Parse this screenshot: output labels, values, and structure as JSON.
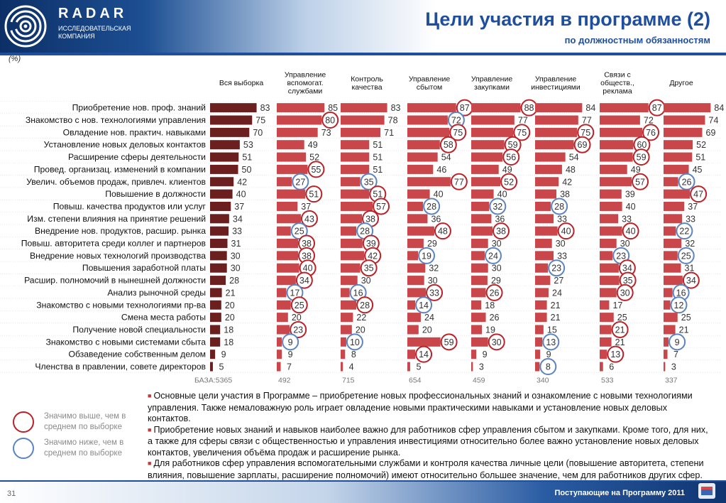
{
  "header": {
    "logo_name": "RADAR",
    "logo_subtitle": "ИССЛЕДОВАТЕЛЬСКАЯ КОМПАНИЯ",
    "title": "Цели участия в программе (2)",
    "subtitle": "по должностным обязанностям"
  },
  "unit_label": "(%)",
  "colors": {
    "bar_total": "#6b1f1f",
    "bar_segment": "#c9474a",
    "above_avg_circle": "#b82228",
    "below_avg_circle": "#5c84c0",
    "title": "#1f4e9c"
  },
  "chart_data": {
    "type": "bar",
    "orientation": "horizontal",
    "categories": [
      "Приобретение нов. проф. знаний",
      "Знакомство с нов. технологиями управления",
      "Овладение нов. практич. навыками",
      "Установление новых деловых контактов",
      "Расширение сферы деятельности",
      "Провед. организац. изменений в компании",
      "Увелич. объемов продаж, привлеч. клиентов",
      "Повышение в должности",
      "Повыш. качества продуктов или услуг",
      "Изм. степени влияния на принятие решений",
      "Внедрение нов. продуктов, расшир. рынка",
      "Повыш. авторитета среди коллег и партнеров",
      "Внедрение новых технологий производства",
      "Повышения заработной платы",
      "Расшир. полномочий в нынешней должности",
      "Анализ рыночной среды",
      "Знакомство с новыми технологиями пр-ва",
      "Смена места работы",
      "Получение новой специальности",
      "Знакомство с новыми системами сбыта",
      "Обзаведение собственным делом",
      "Членства в правлении, совете директоров"
    ],
    "series": [
      {
        "name": "Вся выборка",
        "base": "5365",
        "values": [
          83,
          75,
          70,
          53,
          51,
          50,
          42,
          40,
          37,
          34,
          33,
          31,
          30,
          30,
          28,
          21,
          20,
          20,
          18,
          18,
          9,
          5
        ],
        "marks": [
          "",
          "",
          "",
          "",
          "",
          "",
          "",
          "",
          "",
          "",
          "",
          "",
          "",
          "",
          "",
          "",
          "",
          "",
          "",
          "",
          "",
          ""
        ]
      },
      {
        "name": "Управление вспомогат. службами",
        "base": "492",
        "values": [
          85,
          80,
          73,
          49,
          52,
          55,
          27,
          51,
          37,
          43,
          25,
          38,
          38,
          40,
          34,
          17,
          25,
          20,
          23,
          9,
          9,
          7
        ],
        "marks": [
          "",
          "above",
          "",
          "",
          "",
          "above",
          "below",
          "above",
          "",
          "above",
          "below",
          "above",
          "above",
          "above",
          "above",
          "below",
          "above",
          "",
          "above",
          "below",
          "",
          ""
        ]
      },
      {
        "name": "Контроль качества",
        "base": "715",
        "values": [
          83,
          78,
          71,
          51,
          51,
          51,
          35,
          51,
          57,
          38,
          28,
          39,
          42,
          35,
          30,
          16,
          28,
          22,
          20,
          10,
          8,
          4
        ],
        "marks": [
          "",
          "",
          "",
          "",
          "",
          "",
          "below",
          "above",
          "above",
          "above",
          "below",
          "above",
          "above",
          "above",
          "",
          "below",
          "above",
          "",
          "",
          "below",
          "",
          ""
        ]
      },
      {
        "name": "Управление сбытом",
        "base": "654",
        "values": [
          87,
          72,
          75,
          58,
          54,
          46,
          77,
          40,
          28,
          36,
          48,
          29,
          19,
          32,
          30,
          33,
          14,
          24,
          20,
          59,
          14,
          5
        ],
        "marks": [
          "above",
          "below",
          "above",
          "above",
          "",
          "",
          "above",
          "",
          "below",
          "",
          "above",
          "",
          "below",
          "",
          "",
          "above",
          "below",
          "",
          "",
          "above",
          "above",
          ""
        ]
      },
      {
        "name": "Управление закупками",
        "base": "459",
        "values": [
          88,
          77,
          75,
          59,
          56,
          49,
          52,
          40,
          32,
          36,
          38,
          30,
          24,
          30,
          29,
          26,
          18,
          26,
          19,
          30,
          9,
          3
        ],
        "marks": [
          "above",
          "",
          "above",
          "above",
          "above",
          "",
          "above",
          "",
          "below",
          "",
          "above",
          "",
          "below",
          "",
          "",
          "above",
          "",
          "",
          "",
          "above",
          "",
          ""
        ]
      },
      {
        "name": "Управление инвестициями",
        "base": "340",
        "values": [
          84,
          77,
          75,
          69,
          54,
          48,
          42,
          38,
          28,
          33,
          40,
          30,
          33,
          23,
          27,
          24,
          21,
          21,
          15,
          13,
          9,
          8
        ],
        "marks": [
          "",
          "",
          "above",
          "above",
          "",
          "",
          "",
          "",
          "below",
          "",
          "above",
          "",
          "",
          "below",
          "",
          "",
          "",
          "",
          "",
          "below",
          "",
          "below"
        ]
      },
      {
        "name": "Связи с обществ., реклама",
        "base": "533",
        "values": [
          87,
          72,
          76,
          60,
          59,
          49,
          57,
          39,
          40,
          33,
          40,
          30,
          23,
          34,
          35,
          30,
          17,
          25,
          21,
          21,
          13,
          6
        ],
        "marks": [
          "above",
          "",
          "above",
          "above",
          "above",
          "",
          "above",
          "",
          "",
          "",
          "above",
          "",
          "below",
          "above",
          "above",
          "above",
          "",
          "",
          "above",
          "",
          "above",
          ""
        ]
      },
      {
        "name": "Другое",
        "base": "337",
        "values": [
          84,
          74,
          69,
          52,
          51,
          45,
          26,
          47,
          37,
          33,
          22,
          32,
          25,
          31,
          34,
          16,
          12,
          25,
          21,
          9,
          7,
          3
        ],
        "marks": [
          "",
          "",
          "",
          "",
          "",
          "",
          "below",
          "above",
          "",
          "",
          "below",
          "",
          "below",
          "",
          "above",
          "below",
          "below",
          "",
          "",
          "below",
          "",
          ""
        ]
      }
    ],
    "base_label": "БАЗА:",
    "xlim": [
      0,
      100
    ]
  },
  "legend": {
    "above": "Значимо выше, чем в среднем по выборке",
    "below": "Значимо ниже, чем в среднем по выборке"
  },
  "notes": [
    "Основные цели участия в Программе – приобретение новых профессиональных знаний и ознакомление с новыми технологиями управления. Также немаловажную роль играет овладение новыми практическими навыками и установление новых деловых контактов.",
    "Приобретение новых знаний и навыков наиболее важно для работников сфер управления сбытом и закупками. Кроме того, для них, а также для сферы связи с общественностью и управления инвестициями относительно более важно установление новых деловых контактов, увеличения объёма продаж и расширение рынка.",
    "Для работников сфер управления вспомогательными службами и контроля качества личные цели (повышение авторитета, степени влияния, повышение зарплаты, расширение полномочий) имеют относительно большее значение, чем для работников других сфер."
  ],
  "footer": {
    "page_number": "31",
    "text": "Поступающие на Программу 2011"
  }
}
